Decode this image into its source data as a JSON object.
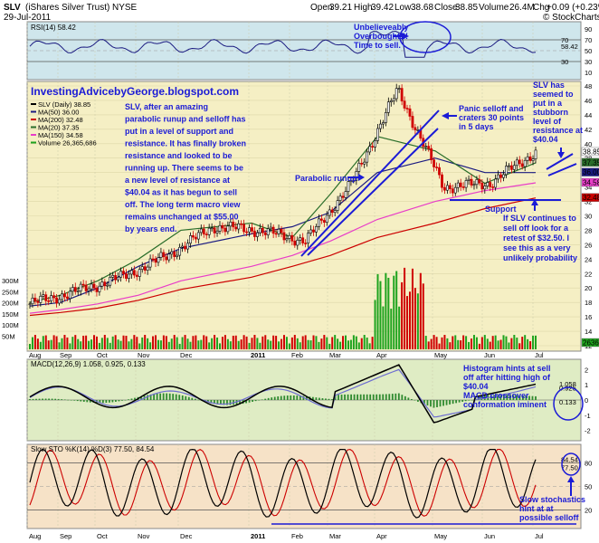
{
  "header": {
    "symbol": "SLV",
    "name": "(iShares Silver Trust)",
    "exchange": "NYSE",
    "date": "29-Jul-2011",
    "open_label": "Open",
    "open": "39.21",
    "high_label": "High",
    "high": "39.42",
    "low_label": "Low",
    "low": "38.68",
    "close_label": "Close",
    "close": "38.85",
    "volume_label": "Volume",
    "volume": "26.4M",
    "chg_label": "Chg",
    "chg": "+0.09 (+0.23%)",
    "watermark": "© StockCharts.com"
  },
  "rsi_panel": {
    "legend": "RSI(14) 58.42",
    "ticks": [
      "90",
      "70",
      "50",
      "30",
      "10"
    ],
    "right_marks": [
      "70",
      "58.42",
      "30"
    ],
    "annotation": [
      "Unbelieveably",
      "Overbought!!!",
      "Time to sell."
    ]
  },
  "price_panel": {
    "legend": [
      "SLV (Daily) 38.85",
      "MA(50) 36.00",
      "MA(200) 32.48",
      "MA(20) 37.35",
      "MA(150) 34.58",
      "Volume 26,365,686"
    ],
    "legend_colors": [
      "#000000",
      "#1a1a80",
      "#cc0000",
      "#2a6e2a",
      "#e83dc8",
      "#1ea31e"
    ],
    "ticks": [
      "48",
      "46",
      "44",
      "42",
      "40",
      "38",
      "36",
      "34",
      "32",
      "30",
      "28",
      "26",
      "24",
      "22",
      "20",
      "18",
      "16",
      "14",
      "12"
    ],
    "vol_ticks": [
      "300M",
      "250M",
      "200M",
      "150M",
      "100M",
      "50M"
    ],
    "right_marks": [
      "38.85",
      "37.35",
      "36.00",
      "34.58",
      "32.48",
      "26365"
    ],
    "blog": "InvestingAdvicebyGeorge.blogspot.com",
    "commentary": [
      "SLV, after an amazing",
      "parabolic runup and selloff has",
      "put in a level of support and",
      "resistance. It has finally broken",
      "resistance and looked to be",
      "running up. There seems to be",
      "a new level of resistance at",
      "$40.04 as it has begun to sell",
      "off. The long term macro view",
      "remains unchanged at $55.00",
      "by years end."
    ],
    "parabolic_label": "Parabolic runup",
    "panic_label": [
      "Panic selloff and",
      "craters 30 points",
      "in 5 days"
    ],
    "support_label": "Support",
    "stubborn_label": [
      "SLV has",
      "seemed to",
      "put in a",
      "stubborn",
      "level of",
      "resistance at",
      "$40.04"
    ],
    "retest_label": [
      "If SLV continues to",
      "sell off look for a",
      "retest of $32.50. I",
      "see this as a very",
      "unlikely probability"
    ]
  },
  "macd_panel": {
    "legend": "MACD(12,26,9) 1.058, 0.925, 0.133",
    "ticks": [
      "2",
      "1",
      "0",
      "-1",
      "-2"
    ],
    "right_marks": [
      "1.058",
      "0.925",
      "0.133"
    ],
    "annotation": [
      "Histogram hints at sell",
      "off after hitting high of",
      "$40.04",
      "MACD crossover",
      "conformation iminent"
    ]
  },
  "sto_panel": {
    "legend": "Slow STO %K(14) %D(3) 77.50, 84.54",
    "ticks": [
      "80",
      "50",
      "20"
    ],
    "right_marks": [
      "84.54",
      "77.50"
    ],
    "annotation": [
      "Slow stochastics",
      "hint at at",
      "possible selloff"
    ]
  },
  "x_axis": {
    "labels": [
      "Aug",
      "Sep",
      "Oct",
      "Nov",
      "Dec",
      "2011",
      "Feb",
      "Mar",
      "Apr",
      "May",
      "Jun",
      "Jul"
    ]
  },
  "colors": {
    "rsi_bg": "#cfe6ec",
    "price_bg": "#f5efc4",
    "macd_bg": "#dfecc4",
    "sto_bg": "#f6e2c7",
    "annotation": "#1b1bd6",
    "ma50": "#1a1a80",
    "ma200": "#cc0000",
    "ma20": "#2a6e2a",
    "ma150": "#e83dc8",
    "volume": "#1ea31e"
  },
  "chart_data": {
    "type": "line",
    "title": "SLV (iShares Silver Trust) NYSE",
    "x": [
      "Aug",
      "Sep",
      "Oct",
      "Nov",
      "Dec",
      "2011",
      "Feb",
      "Mar",
      "Apr",
      "May",
      "Jun",
      "Jul"
    ],
    "series": [
      {
        "name": "SLV (Daily) 38.85",
        "values": [
          17.8,
          19.5,
          21.5,
          24.5,
          28.5,
          28.0,
          26.5,
          34.5,
          47.5,
          34.0,
          34.5,
          38.85
        ]
      },
      {
        "name": "MA(50) 36.00",
        "values": [
          17.5,
          18.0,
          20.0,
          23.0,
          25.5,
          27.5,
          28.5,
          30.5,
          36.0,
          38.0,
          36.0,
          36.0
        ]
      },
      {
        "name": "MA(200) 32.48",
        "values": [
          16.2,
          16.6,
          17.2,
          18.3,
          19.8,
          21.5,
          23.0,
          24.5,
          27.0,
          29.0,
          31.0,
          32.48
        ]
      },
      {
        "name": "MA(20) 37.35",
        "values": [
          18.0,
          19.0,
          21.0,
          24.0,
          28.0,
          29.0,
          27.0,
          33.0,
          41.0,
          39.0,
          34.5,
          37.35
        ]
      },
      {
        "name": "MA(150) 34.58",
        "values": [
          16.5,
          17.0,
          17.8,
          19.0,
          21.0,
          23.0,
          24.5,
          26.5,
          29.5,
          32.0,
          33.5,
          34.58
        ]
      }
    ],
    "ylim": [
      12,
      48
    ],
    "xlabel": "",
    "ylabel": "",
    "grid": true,
    "legend_placement": "top-left"
  }
}
